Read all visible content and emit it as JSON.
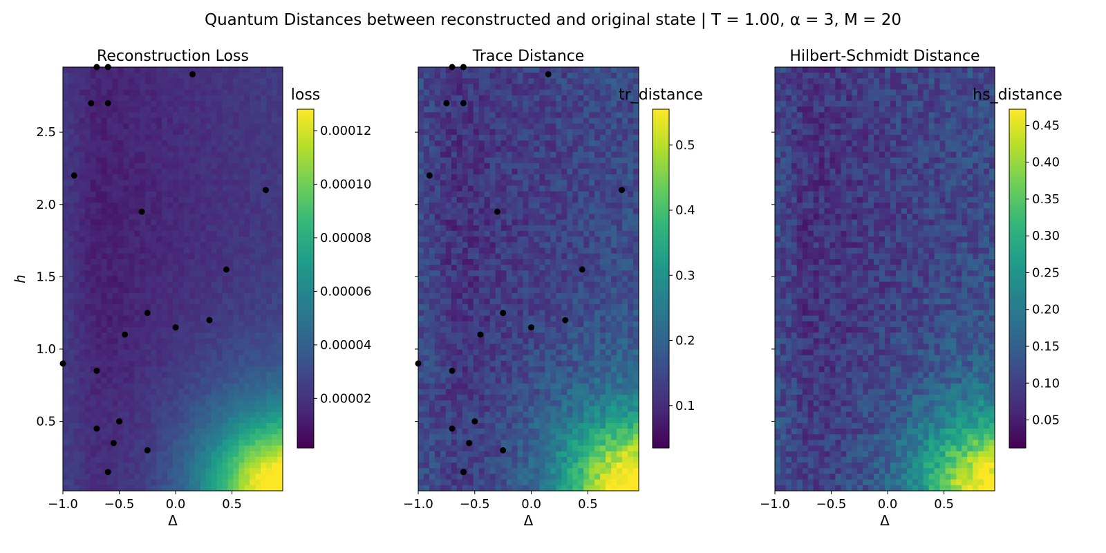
{
  "figure": {
    "suptitle": "Quantum Distances between reconstructed and original state | T = 1.00, α = 3, M = 20",
    "colormap": "viridis",
    "viridis_stops": [
      "#440154",
      "#482878",
      "#3e4989",
      "#31688e",
      "#26828e",
      "#1f9e89",
      "#35b779",
      "#6ece58",
      "#b5de2b",
      "#fde725"
    ],
    "point_color": "#000000"
  },
  "chart_data": [
    {
      "type": "heatmap",
      "title": "Reconstruction Loss",
      "xlabel": "Δ",
      "ylabel": "h",
      "xlim": [
        -1.0,
        0.95
      ],
      "ylim": [
        0.02,
        2.95
      ],
      "xticks": [
        -1.0,
        -0.5,
        0.0,
        0.5
      ],
      "xtick_labels": [
        "−1.0",
        "−0.5",
        "0.0",
        "0.5"
      ],
      "yticks": [
        0.5,
        1.0,
        1.5,
        2.0,
        2.5
      ],
      "ytick_labels": [
        "0.5",
        "1.0",
        "1.5",
        "2.0",
        "2.5"
      ],
      "colorbar": {
        "label": "loss",
        "range": [
          1.5e-06,
          0.000128
        ],
        "ticks": [
          2e-05,
          4e-05,
          6e-05,
          8e-05,
          0.0001,
          0.00012
        ],
        "tick_labels": [
          "0.00002",
          "0.00004",
          "0.00006",
          "0.00008",
          "0.00010",
          "0.00012"
        ]
      },
      "field": {
        "background_level": 0.08,
        "peak_level": 1.0,
        "peak_at": [
          0.95,
          0.02
        ],
        "noise": 0.03
      },
      "points": [
        [
          -0.7,
          2.95
        ],
        [
          -0.6,
          2.95
        ],
        [
          0.15,
          2.9
        ],
        [
          -0.75,
          2.7
        ],
        [
          -0.6,
          2.7
        ],
        [
          -0.9,
          2.2
        ],
        [
          0.8,
          2.1
        ],
        [
          -0.3,
          1.95
        ],
        [
          0.45,
          1.55
        ],
        [
          -0.25,
          1.25
        ],
        [
          0.3,
          1.2
        ],
        [
          0.0,
          1.15
        ],
        [
          -0.45,
          1.1
        ],
        [
          -1.0,
          0.9
        ],
        [
          -0.7,
          0.85
        ],
        [
          -0.5,
          0.5
        ],
        [
          -0.7,
          0.45
        ],
        [
          -0.55,
          0.35
        ],
        [
          -0.25,
          0.3
        ],
        [
          -0.6,
          0.15
        ]
      ]
    },
    {
      "type": "heatmap",
      "title": "Trace Distance",
      "xlabel": "Δ",
      "ylabel": "",
      "xlim": [
        -1.0,
        0.95
      ],
      "ylim": [
        0.02,
        2.95
      ],
      "xticks": [
        -1.0,
        -0.5,
        0.0,
        0.5
      ],
      "xtick_labels": [
        "−1.0",
        "−0.5",
        "0.0",
        "0.5"
      ],
      "yticks": [
        0.5,
        1.0,
        1.5,
        2.0,
        2.5
      ],
      "ytick_labels": [
        "",
        "",
        "",
        "",
        ""
      ],
      "colorbar": {
        "label": "tr_distance",
        "range": [
          0.035,
          0.555
        ],
        "ticks": [
          0.1,
          0.2,
          0.3,
          0.4,
          0.5
        ],
        "tick_labels": [
          "0.1",
          "0.2",
          "0.3",
          "0.4",
          "0.5"
        ]
      },
      "field": {
        "background_level": 0.14,
        "peak_level": 1.0,
        "peak_at": [
          0.95,
          0.02
        ],
        "noise": 0.08
      },
      "points": [
        [
          -0.7,
          2.95
        ],
        [
          -0.6,
          2.95
        ],
        [
          0.15,
          2.9
        ],
        [
          -0.75,
          2.7
        ],
        [
          -0.6,
          2.7
        ],
        [
          -0.9,
          2.2
        ],
        [
          0.8,
          2.1
        ],
        [
          -0.3,
          1.95
        ],
        [
          0.45,
          1.55
        ],
        [
          -0.25,
          1.25
        ],
        [
          0.3,
          1.2
        ],
        [
          0.0,
          1.15
        ],
        [
          -0.45,
          1.1
        ],
        [
          -1.0,
          0.9
        ],
        [
          -0.7,
          0.85
        ],
        [
          -0.5,
          0.5
        ],
        [
          -0.7,
          0.45
        ],
        [
          -0.55,
          0.35
        ],
        [
          -0.25,
          0.3
        ],
        [
          -0.6,
          0.15
        ]
      ]
    },
    {
      "type": "heatmap",
      "title": "Hilbert-Schmidt Distance",
      "xlabel": "Δ",
      "ylabel": "",
      "xlim": [
        -1.0,
        0.95
      ],
      "ylim": [
        0.02,
        2.95
      ],
      "xticks": [
        -1.0,
        -0.5,
        0.0,
        0.5
      ],
      "xtick_labels": [
        "−1.0",
        "−0.5",
        "0.0",
        "0.5"
      ],
      "yticks": [
        0.5,
        1.0,
        1.5,
        2.0,
        2.5
      ],
      "ytick_labels": [
        "",
        "",
        "",
        "",
        ""
      ],
      "colorbar": {
        "label": "hs_distance",
        "range": [
          0.012,
          0.472
        ],
        "ticks": [
          0.05,
          0.1,
          0.15,
          0.2,
          0.25,
          0.3,
          0.35,
          0.4,
          0.45
        ],
        "tick_labels": [
          "0.05",
          "0.10",
          "0.15",
          "0.20",
          "0.25",
          "0.30",
          "0.35",
          "0.40",
          "0.45"
        ]
      },
      "field": {
        "background_level": 0.14,
        "peak_level": 0.95,
        "peak_at": [
          0.95,
          0.02
        ],
        "noise": 0.09
      },
      "points": []
    }
  ]
}
